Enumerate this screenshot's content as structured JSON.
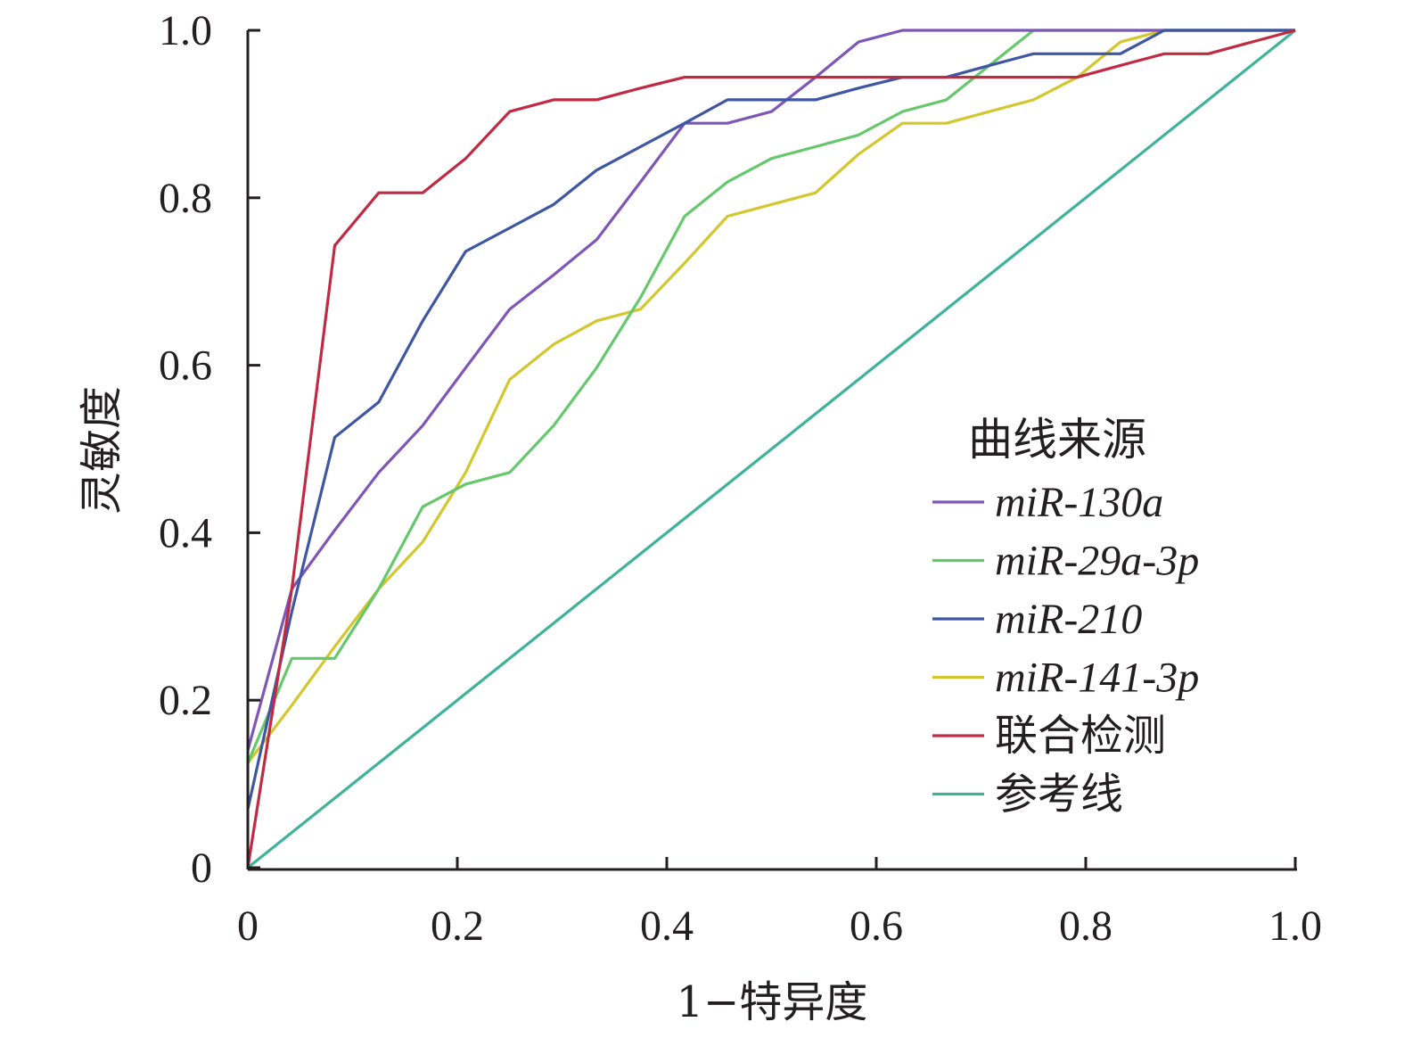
{
  "chart_data": {
    "type": "line",
    "xlabel": "1−特异度",
    "ylabel": "灵敏度",
    "xlim": [
      0,
      1
    ],
    "ylim": [
      0,
      1
    ],
    "x_ticks": [
      "0",
      "0.2",
      "0.4",
      "0.6",
      "0.8",
      "1.0"
    ],
    "y_ticks": [
      "0",
      "0.2",
      "0.4",
      "0.6",
      "0.8",
      "1.0"
    ],
    "grid": false,
    "legend_position": "center-right",
    "legend_title": "曲线来源",
    "series": [
      {
        "name": "miR-130a",
        "italic": true,
        "color": "#7e56b8",
        "points": [
          [
            0,
            0.14
          ],
          [
            0.042,
            0.333
          ],
          [
            0.083,
            0.403
          ],
          [
            0.125,
            0.472
          ],
          [
            0.167,
            0.528
          ],
          [
            0.208,
            0.597
          ],
          [
            0.25,
            0.667
          ],
          [
            0.292,
            0.708
          ],
          [
            0.333,
            0.75
          ],
          [
            0.375,
            0.819
          ],
          [
            0.417,
            0.889
          ],
          [
            0.458,
            0.889
          ],
          [
            0.5,
            0.903
          ],
          [
            0.542,
            0.944
          ],
          [
            0.583,
            0.986
          ],
          [
            0.625,
            1.0
          ],
          [
            0.75,
            1.0
          ],
          [
            1.0,
            1.0
          ]
        ]
      },
      {
        "name": "miR-29a-3p",
        "italic": true,
        "color": "#66c86c",
        "points": [
          [
            0,
            0.125
          ],
          [
            0.042,
            0.25
          ],
          [
            0.083,
            0.25
          ],
          [
            0.125,
            0.333
          ],
          [
            0.167,
            0.431
          ],
          [
            0.208,
            0.458
          ],
          [
            0.25,
            0.472
          ],
          [
            0.292,
            0.528
          ],
          [
            0.333,
            0.597
          ],
          [
            0.375,
            0.681
          ],
          [
            0.417,
            0.778
          ],
          [
            0.458,
            0.819
          ],
          [
            0.5,
            0.847
          ],
          [
            0.542,
            0.861
          ],
          [
            0.583,
            0.875
          ],
          [
            0.625,
            0.903
          ],
          [
            0.667,
            0.917
          ],
          [
            0.708,
            0.958
          ],
          [
            0.75,
            1.0
          ],
          [
            0.875,
            1.0
          ],
          [
            1.0,
            1.0
          ]
        ]
      },
      {
        "name": "miR-210",
        "italic": true,
        "color": "#3e56a4",
        "points": [
          [
            0,
            0.07
          ],
          [
            0.042,
            0.306
          ],
          [
            0.083,
            0.514
          ],
          [
            0.125,
            0.556
          ],
          [
            0.167,
            0.653
          ],
          [
            0.208,
            0.736
          ],
          [
            0.25,
            0.764
          ],
          [
            0.292,
            0.792
          ],
          [
            0.333,
            0.833
          ],
          [
            0.375,
            0.861
          ],
          [
            0.417,
            0.889
          ],
          [
            0.458,
            0.917
          ],
          [
            0.5,
            0.917
          ],
          [
            0.542,
            0.917
          ],
          [
            0.583,
            0.931
          ],
          [
            0.625,
            0.944
          ],
          [
            0.667,
            0.944
          ],
          [
            0.708,
            0.958
          ],
          [
            0.75,
            0.972
          ],
          [
            0.833,
            0.972
          ],
          [
            0.875,
            1.0
          ],
          [
            1.0,
            1.0
          ]
        ]
      },
      {
        "name": "miR-141-3p",
        "italic": true,
        "color": "#d2c82e",
        "points": [
          [
            0,
            0.125
          ],
          [
            0.042,
            0.194
          ],
          [
            0.083,
            0.264
          ],
          [
            0.125,
            0.333
          ],
          [
            0.167,
            0.389
          ],
          [
            0.208,
            0.472
          ],
          [
            0.25,
            0.583
          ],
          [
            0.292,
            0.625
          ],
          [
            0.333,
            0.653
          ],
          [
            0.375,
            0.667
          ],
          [
            0.417,
            0.722
          ],
          [
            0.458,
            0.778
          ],
          [
            0.5,
            0.792
          ],
          [
            0.542,
            0.806
          ],
          [
            0.583,
            0.852
          ],
          [
            0.625,
            0.889
          ],
          [
            0.667,
            0.889
          ],
          [
            0.708,
            0.903
          ],
          [
            0.75,
            0.917
          ],
          [
            0.792,
            0.944
          ],
          [
            0.833,
            0.986
          ],
          [
            0.875,
            1.0
          ],
          [
            1.0,
            1.0
          ]
        ]
      },
      {
        "name": "联合检测",
        "italic": false,
        "color": "#c02a42",
        "points": [
          [
            0,
            0
          ],
          [
            0.042,
            0.333
          ],
          [
            0.083,
            0.743
          ],
          [
            0.125,
            0.806
          ],
          [
            0.167,
            0.806
          ],
          [
            0.208,
            0.847
          ],
          [
            0.25,
            0.903
          ],
          [
            0.292,
            0.917
          ],
          [
            0.333,
            0.917
          ],
          [
            0.375,
            0.931
          ],
          [
            0.417,
            0.944
          ],
          [
            0.792,
            0.944
          ],
          [
            0.833,
            0.958
          ],
          [
            0.875,
            0.972
          ],
          [
            0.917,
            0.972
          ],
          [
            1.0,
            1.0
          ]
        ]
      },
      {
        "name": "参考线",
        "italic": false,
        "color": "#3eb39a",
        "points": [
          [
            0,
            0
          ],
          [
            1,
            1
          ]
        ]
      }
    ]
  }
}
